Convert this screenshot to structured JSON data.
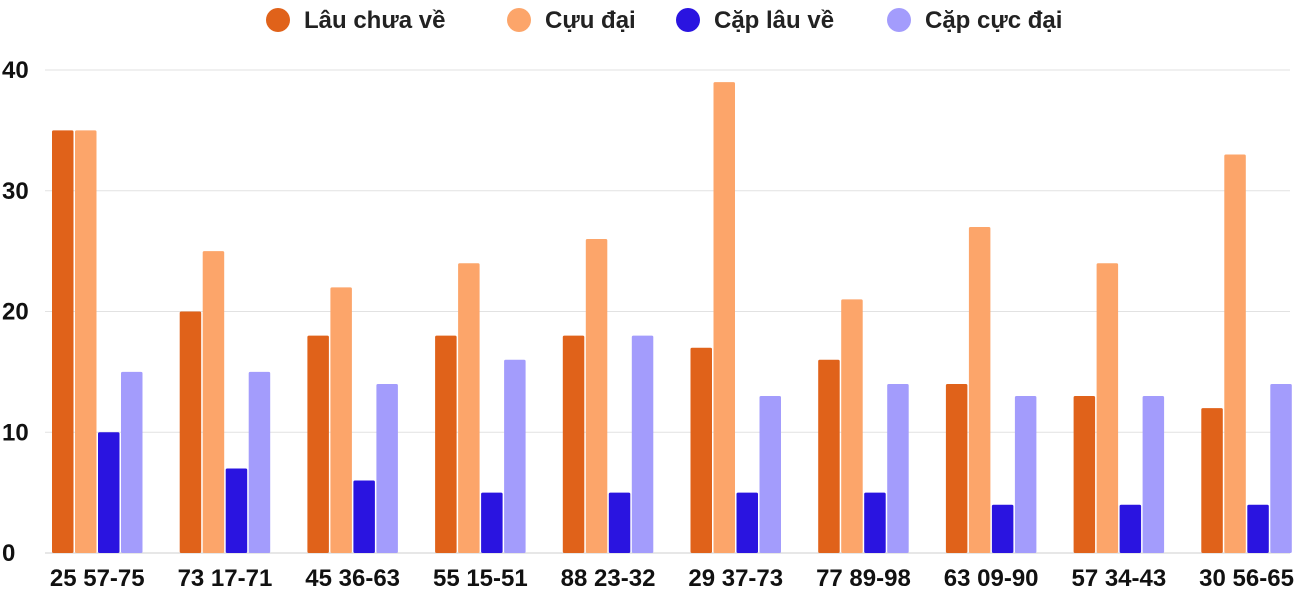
{
  "chart_data": {
    "type": "bar",
    "title": "",
    "xlabel": "",
    "ylabel": "",
    "ylim": [
      0,
      40
    ],
    "yticks": [
      0,
      10,
      20,
      30,
      40
    ],
    "grid": true,
    "legend_position": "top",
    "categories": [
      "25 57-75",
      "73 17-71",
      "45 36-63",
      "55 15-51",
      "88 23-32",
      "29 37-73",
      "77 89-98",
      "63 09-90",
      "57 34-43",
      "30 56-65"
    ],
    "series": [
      {
        "name": "Lâu chưa về",
        "color": "#e0621a",
        "values": [
          35,
          20,
          18,
          18,
          18,
          17,
          16,
          14,
          13,
          12
        ]
      },
      {
        "name": "Cựu đại",
        "color": "#fca56a",
        "values": [
          35,
          25,
          22,
          24,
          26,
          39,
          21,
          27,
          24,
          33
        ]
      },
      {
        "name": "Cặp lâu về",
        "color": "#2a14e0",
        "values": [
          10,
          7,
          6,
          5,
          5,
          5,
          5,
          4,
          4,
          4
        ]
      },
      {
        "name": "Cặp cực đại",
        "color": "#a39cfc",
        "values": [
          15,
          15,
          14,
          16,
          18,
          13,
          14,
          13,
          13,
          14
        ]
      }
    ]
  }
}
